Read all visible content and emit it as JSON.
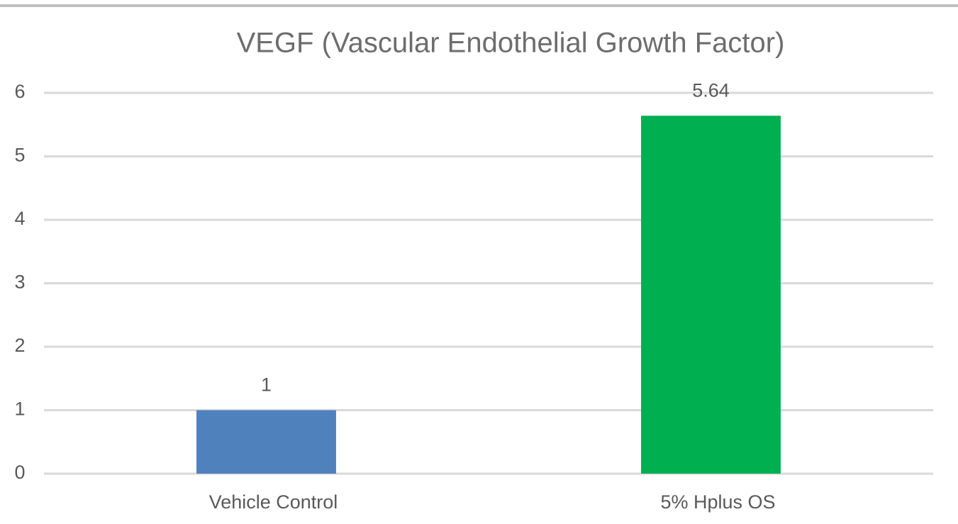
{
  "chart_data": {
    "type": "bar",
    "title": "VEGF (Vascular Endothelial Growth Factor)",
    "categories": [
      "Vehicle Control",
      "5% Hplus OS"
    ],
    "values": [
      1,
      5.64
    ],
    "colors": [
      "#4f81bd",
      "#00b050"
    ],
    "ylim": [
      0,
      6
    ],
    "yticks": [
      0,
      1,
      2,
      3,
      4,
      5,
      6
    ],
    "grid": true,
    "data_labels": true
  }
}
